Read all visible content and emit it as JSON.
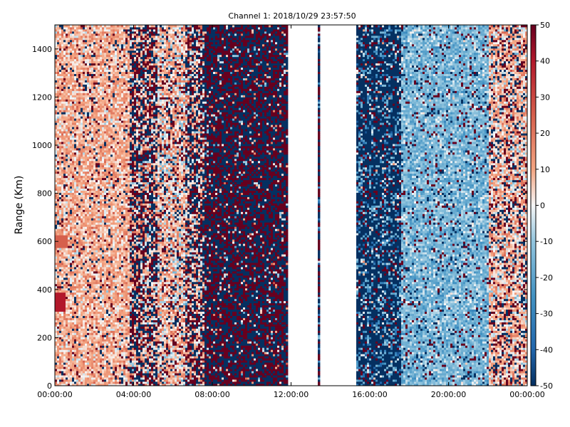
{
  "chart_data": {
    "type": "heatmap",
    "title": "Channel 1: 2018/10/29 23:57:50",
    "xlabel": "",
    "ylabel": "Range (Km)",
    "x_ticks": [
      "00:00:00",
      "04:00:00",
      "08:00:00",
      "12:00:00",
      "16:00:00",
      "20:00:00",
      "00:00:00"
    ],
    "x_range_hours": [
      0,
      24
    ],
    "y_ticks": [
      0,
      200,
      400,
      600,
      800,
      1000,
      1200,
      1400
    ],
    "ylim": [
      0,
      1500
    ],
    "colorbar": {
      "colormap": "RdBu_r",
      "range": [
        -50,
        50
      ],
      "ticks": [
        50,
        40,
        30,
        20,
        10,
        0,
        -10,
        -20,
        -30,
        -40,
        -50
      ]
    },
    "gaps_hours": [
      [
        11.8,
        13.3
      ],
      [
        13.4,
        15.3
      ]
    ],
    "colors": {
      "max": "#67001f",
      "min": "#053061",
      "mid": "#f7f7f7"
    }
  }
}
